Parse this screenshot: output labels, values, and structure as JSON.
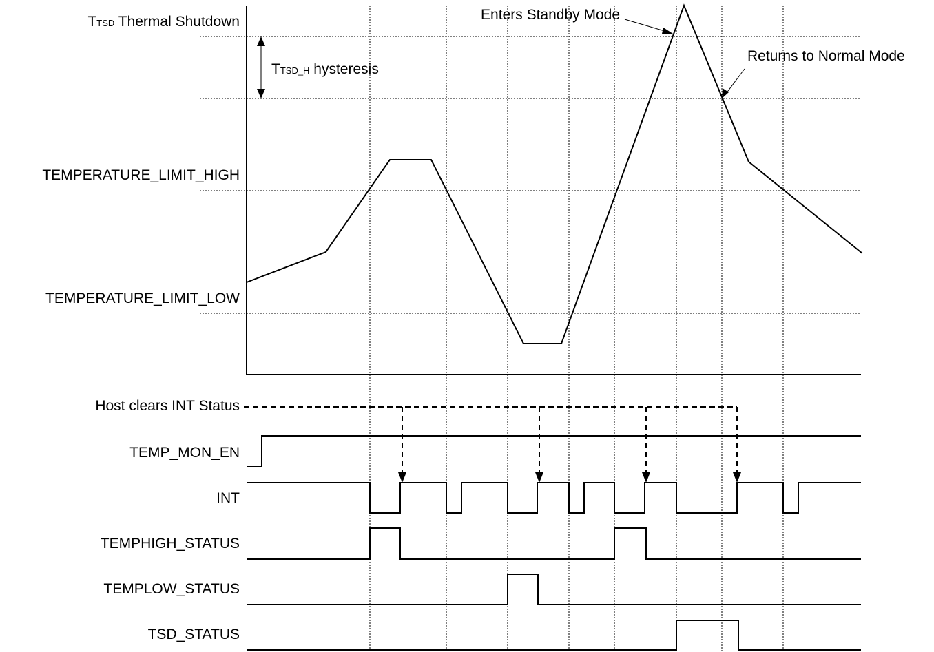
{
  "labels": {
    "tsd_main": "T",
    "tsd_sub": "TSD",
    "tsd_rest": " Thermal Shutdown",
    "hyst_main": "T",
    "hyst_sub": "TSD_H",
    "hyst_rest": " hysteresis",
    "limit_high": "TEMPERATURE_LIMIT_HIGH",
    "limit_low": "TEMPERATURE_LIMIT_LOW",
    "enters_standby": "Enters Standby Mode",
    "returns_normal": "Returns to Normal Mode"
  },
  "signals": {
    "host_clears": "Host clears INT Status",
    "temp_mon_en": "TEMP_MON_EN",
    "int": "INT",
    "temphigh_status": "TEMPHIGH_STATUS",
    "templow_status": "TEMPLOW_STATUS",
    "tsd_status": "TSD_STATUS"
  }
}
